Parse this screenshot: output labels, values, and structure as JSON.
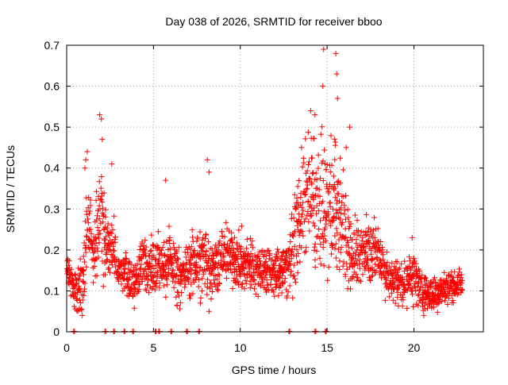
{
  "chart_data": {
    "type": "scatter",
    "title": "Day 038 of 2026, SRMTID for receiver bboo",
    "xlabel": "GPS time / hours",
    "ylabel": "SRMTID / TECUs",
    "xlim": [
      0,
      24
    ],
    "ylim": [
      0,
      0.7
    ],
    "xticks": [
      0,
      5,
      10,
      15,
      20
    ],
    "xtick_labels": [
      "0",
      "5",
      "10",
      "15",
      "20"
    ],
    "yticks": [
      0,
      0.1,
      0.2,
      0.3,
      0.4,
      0.5,
      0.6,
      0.7
    ],
    "ytick_labels": [
      "0",
      "0.1",
      "0.2",
      "0.3",
      "0.4",
      "0.5",
      "0.6",
      "0.7"
    ],
    "grid": true,
    "marker": "+",
    "series": [
      {
        "name": "SRMTID",
        "color": "#ff0000",
        "profile_hours": [
          0,
          0.3,
          0.6,
          1.0,
          1.2,
          1.5,
          1.8,
          2.0,
          2.3,
          2.6,
          3.0,
          3.5,
          4.0,
          4.4,
          4.6,
          5.0,
          5.5,
          6.0,
          6.5,
          7.0,
          7.5,
          8.0,
          8.5,
          9.0,
          9.5,
          10.0,
          10.5,
          11.0,
          11.5,
          12.0,
          12.5,
          13.0,
          13.5,
          14.0,
          14.5,
          15.0,
          15.5,
          16.0,
          16.5,
          17.0,
          17.5,
          18.0,
          18.5,
          19.0,
          19.5,
          20.0,
          20.5,
          21.0,
          21.5,
          22.0,
          22.5,
          22.8
        ],
        "profile_median": [
          0.15,
          0.12,
          0.09,
          0.14,
          0.3,
          0.2,
          0.25,
          0.3,
          0.2,
          0.2,
          0.15,
          0.13,
          0.12,
          0.18,
          0.15,
          0.17,
          0.16,
          0.17,
          0.14,
          0.15,
          0.18,
          0.17,
          0.16,
          0.19,
          0.18,
          0.17,
          0.16,
          0.16,
          0.15,
          0.14,
          0.15,
          0.2,
          0.3,
          0.32,
          0.3,
          0.3,
          0.3,
          0.25,
          0.18,
          0.2,
          0.2,
          0.19,
          0.13,
          0.12,
          0.12,
          0.14,
          0.09,
          0.09,
          0.1,
          0.11,
          0.12,
          0.12
        ],
        "profile_spread": [
          0.02,
          0.03,
          0.04,
          0.06,
          0.09,
          0.06,
          0.09,
          0.1,
          0.06,
          0.06,
          0.04,
          0.04,
          0.04,
          0.05,
          0.04,
          0.05,
          0.05,
          0.06,
          0.05,
          0.05,
          0.06,
          0.07,
          0.05,
          0.05,
          0.05,
          0.05,
          0.05,
          0.05,
          0.05,
          0.04,
          0.05,
          0.07,
          0.1,
          0.12,
          0.14,
          0.12,
          0.12,
          0.1,
          0.06,
          0.06,
          0.06,
          0.05,
          0.04,
          0.04,
          0.04,
          0.05,
          0.03,
          0.03,
          0.03,
          0.03,
          0.03,
          0.03
        ],
        "peaks": [
          {
            "x": 1.05,
            "y": 0.4
          },
          {
            "x": 1.1,
            "y": 0.42
          },
          {
            "x": 1.9,
            "y": 0.53
          },
          {
            "x": 2.0,
            "y": 0.52
          },
          {
            "x": 2.05,
            "y": 0.47
          },
          {
            "x": 2.6,
            "y": 0.41
          },
          {
            "x": 5.7,
            "y": 0.37
          },
          {
            "x": 8.1,
            "y": 0.42
          },
          {
            "x": 8.2,
            "y": 0.39
          },
          {
            "x": 14.05,
            "y": 0.54
          },
          {
            "x": 14.3,
            "y": 0.53
          },
          {
            "x": 14.8,
            "y": 0.69
          },
          {
            "x": 14.75,
            "y": 0.6
          },
          {
            "x": 15.5,
            "y": 0.68
          },
          {
            "x": 15.55,
            "y": 0.63
          },
          {
            "x": 15.6,
            "y": 0.57
          },
          {
            "x": 16.3,
            "y": 0.5
          },
          {
            "x": 16.1,
            "y": 0.45
          },
          {
            "x": 19.9,
            "y": 0.23
          },
          {
            "x": 0.9,
            "y": 0.04
          },
          {
            "x": 7.7,
            "y": 0.07
          },
          {
            "x": 8.2,
            "y": 0.05
          }
        ],
        "zero_hours": [
          0.4,
          2.2,
          2.7,
          3.3,
          3.8,
          5.1,
          5.3,
          6.0,
          6.9,
          7.6,
          12.8,
          14.3,
          14.9
        ]
      }
    ]
  }
}
